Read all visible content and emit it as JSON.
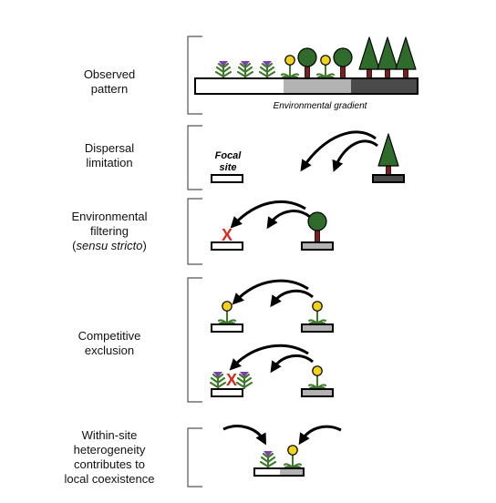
{
  "rows": [
    {
      "id": "observed",
      "label": [
        "Observed",
        "pattern"
      ]
    },
    {
      "id": "dispersal",
      "label": [
        "Dispersal",
        "limitation"
      ]
    },
    {
      "id": "filtering",
      "label": [
        "Environmental",
        "filtering"
      ],
      "label_paren": "sensu stricto"
    },
    {
      "id": "competitive",
      "label": [
        "Competitive",
        "exclusion"
      ]
    },
    {
      "id": "within",
      "label": [
        "Within-site",
        "heterogeneity",
        "contributes to",
        "local coexistence"
      ]
    }
  ],
  "gradient_caption": "Environmental gradient",
  "focal_site": [
    "Focal",
    "site"
  ],
  "exclusion_mark": "X",
  "colors": {
    "fern_green": "#3f7a2a",
    "fern_flower": "#7b3fa8",
    "sunflower": "#f2d21b",
    "tree_green": "#2f6b2a",
    "trunk": "#7a1e1e",
    "gradient_light": "#ffffff",
    "gradient_mid": "#b3b3b3",
    "gradient_dark": "#4a4a4a",
    "x_red": "#d9291c"
  }
}
